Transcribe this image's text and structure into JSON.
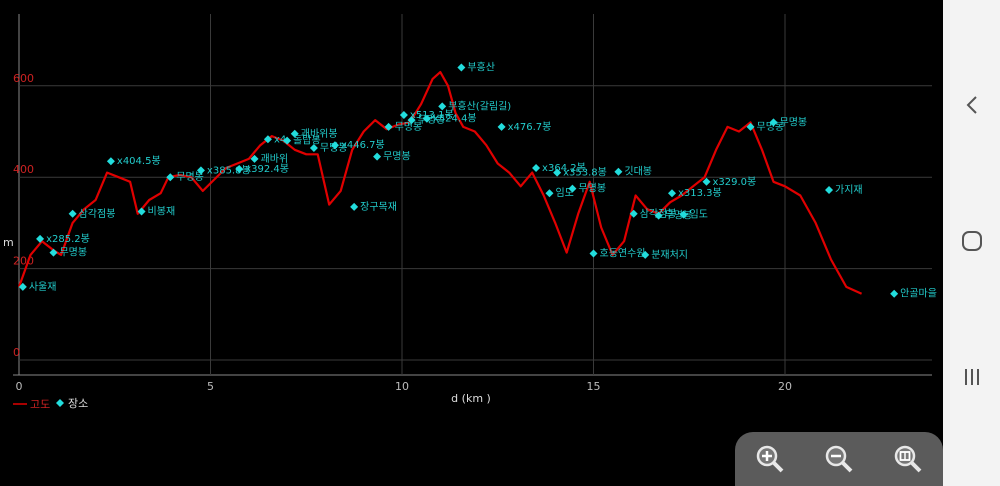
{
  "chart_data": {
    "type": "line",
    "xlabel": "d (km )",
    "ylabel": "m",
    "xlim": [
      0,
      24
    ],
    "ylim": [
      0,
      700
    ],
    "x_ticks": [
      "0",
      "5",
      "10",
      "15",
      "20"
    ],
    "y_ticks": [
      "0",
      "200",
      "400",
      "600"
    ],
    "grid": true,
    "legend": [
      {
        "label": "고도",
        "color": "#e00000",
        "marker": "line"
      },
      {
        "label": "장소",
        "color": "#22dddd",
        "marker": "diamond"
      }
    ],
    "series": [
      {
        "name": "고도",
        "color": "#e00000",
        "x": [
          0,
          0.3,
          0.6,
          0.9,
          1.1,
          1.4,
          1.7,
          2.0,
          2.3,
          2.6,
          2.9,
          3.1,
          3.4,
          3.7,
          3.9,
          4.2,
          4.5,
          4.8,
          5.1,
          5.4,
          5.7,
          6.0,
          6.3,
          6.6,
          6.9,
          7.2,
          7.5,
          7.8,
          8.1,
          8.4,
          8.7,
          9.0,
          9.3,
          9.6,
          9.9,
          10.2,
          10.5,
          10.8,
          11.0,
          11.2,
          11.4,
          11.6,
          11.9,
          12.2,
          12.5,
          12.8,
          13.1,
          13.4,
          13.7,
          14.0,
          14.3,
          14.6,
          14.9,
          15.2,
          15.5,
          15.8,
          16.1,
          16.4,
          16.7,
          17.0,
          17.3,
          17.6,
          17.9,
          18.2,
          18.5,
          18.8,
          19.1,
          19.4,
          19.7,
          20.0,
          20.4,
          20.8,
          21.2,
          21.6,
          22.0
        ],
        "y": [
          160,
          230,
          260,
          240,
          230,
          300,
          330,
          350,
          410,
          400,
          390,
          320,
          350,
          365,
          400,
          405,
          400,
          370,
          395,
          420,
          430,
          440,
          470,
          490,
          480,
          460,
          450,
          450,
          340,
          370,
          460,
          500,
          525,
          505,
          515,
          520,
          560,
          615,
          630,
          600,
          540,
          510,
          500,
          470,
          430,
          410,
          380,
          410,
          360,
          300,
          235,
          320,
          390,
          290,
          230,
          260,
          360,
          330,
          320,
          345,
          360,
          380,
          400,
          460,
          510,
          500,
          520,
          460,
          390,
          380,
          360,
          300,
          220,
          160,
          145
        ]
      }
    ],
    "places": [
      {
        "name": "사울재",
        "x": 0.1,
        "y": 160
      },
      {
        "name": "x285.2봉",
        "x": 0.55,
        "y": 265
      },
      {
        "name": "무명봉",
        "x": 0.9,
        "y": 235
      },
      {
        "name": "삼각점봉",
        "x": 1.4,
        "y": 320
      },
      {
        "name": "x404.5봉",
        "x": 2.4,
        "y": 435
      },
      {
        "name": "비봉재",
        "x": 3.2,
        "y": 325
      },
      {
        "name": "무명봉",
        "x": 3.95,
        "y": 400
      },
      {
        "name": "x385.8봉",
        "x": 4.75,
        "y": 415
      },
      {
        "name": "x392.4봉",
        "x": 5.75,
        "y": 418
      },
      {
        "name": "괘바위",
        "x": 6.15,
        "y": 440
      },
      {
        "name": "x4",
        "x": 6.5,
        "y": 483
      },
      {
        "name": "괘바위봉",
        "x": 7.2,
        "y": 495
      },
      {
        "name": "돌탑봉",
        "x": 7.0,
        "y": 480
      },
      {
        "name": "무명봉",
        "x": 7.7,
        "y": 464
      },
      {
        "name": "x446.7봉",
        "x": 8.25,
        "y": 470
      },
      {
        "name": "장구목재",
        "x": 8.75,
        "y": 335
      },
      {
        "name": "무명봉",
        "x": 9.35,
        "y": 445
      },
      {
        "name": "무명봉",
        "x": 9.65,
        "y": 510
      },
      {
        "name": "x513.1봉",
        "x": 10.05,
        "y": 536
      },
      {
        "name": "무명봉",
        "x": 10.25,
        "y": 525
      },
      {
        "name": "x524.4봉",
        "x": 10.65,
        "y": 528
      },
      {
        "name": "부흥산(갈림길)",
        "x": 11.05,
        "y": 555
      },
      {
        "name": "부흥산",
        "x": 11.55,
        "y": 640
      },
      {
        "name": "x476.7봉",
        "x": 12.6,
        "y": 510
      },
      {
        "name": "x364.2봉",
        "x": 13.5,
        "y": 420
      },
      {
        "name": "임도",
        "x": 13.85,
        "y": 365
      },
      {
        "name": "x353.8봉",
        "x": 14.05,
        "y": 410
      },
      {
        "name": "무명봉",
        "x": 14.45,
        "y": 375
      },
      {
        "name": "호동연수원",
        "x": 15.0,
        "y": 233
      },
      {
        "name": "깃대봉",
        "x": 15.65,
        "y": 412
      },
      {
        "name": "삼각점봉",
        "x": 16.05,
        "y": 320
      },
      {
        "name": "분재처지",
        "x": 16.35,
        "y": 230
      },
      {
        "name": "무명봉",
        "x": 16.7,
        "y": 316
      },
      {
        "name": "x313.3봉",
        "x": 17.05,
        "y": 365
      },
      {
        "name": "임도",
        "x": 17.35,
        "y": 318
      },
      {
        "name": "x329.0봉",
        "x": 17.95,
        "y": 390
      },
      {
        "name": "무명봉",
        "x": 19.1,
        "y": 510
      },
      {
        "name": "무명봉",
        "x": 19.7,
        "y": 520
      },
      {
        "name": "가지재",
        "x": 21.15,
        "y": 372
      },
      {
        "name": "안골마을",
        "x": 22.85,
        "y": 145
      }
    ]
  },
  "navbar": {
    "back_icon": "back-chevron-icon",
    "home_icon": "home-icon",
    "recents_icon": "recents-icon"
  },
  "zoom": {
    "zoom_in_icon": "zoom-in-icon",
    "zoom_out_icon": "zoom-out-icon",
    "zoom_fit_icon": "zoom-fit-icon"
  }
}
